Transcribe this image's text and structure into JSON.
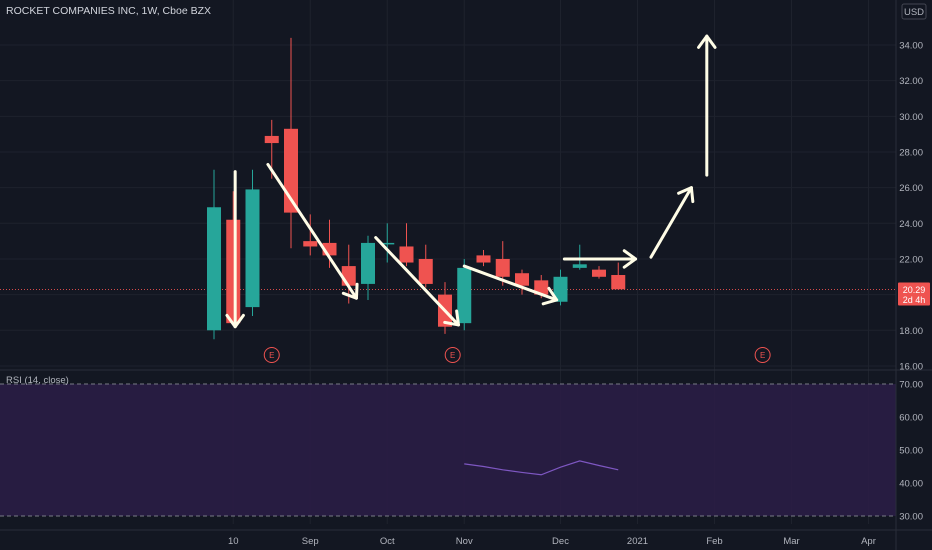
{
  "header": {
    "symbol_title": "ROCKET COMPANIES INC, 1W, Cboe BZX",
    "currency_label": "USD"
  },
  "colors": {
    "background": "#131722",
    "grid": "#1e222d",
    "up": "#26a69a",
    "down": "#ef5350",
    "annotation": "#fffde7",
    "rsi_band": "#2a1d45",
    "rsi_line": "#7e57c2"
  },
  "chart_data": {
    "type": "candlestick",
    "interval": "1W",
    "price_axis": {
      "range": [
        15.0,
        36.0
      ],
      "ticks": [
        "16.00",
        "18.00",
        "20.00",
        "22.00",
        "24.00",
        "26.00",
        "28.00",
        "30.00",
        "32.00",
        "34.00"
      ]
    },
    "last_price": {
      "value": 20.29,
      "label": "20.29",
      "countdown": "2d 4h"
    },
    "x_axis": {
      "labels": [
        {
          "text": "10",
          "week": 1
        },
        {
          "text": "Sep",
          "week": 5
        },
        {
          "text": "Oct",
          "week": 9
        },
        {
          "text": "Nov",
          "week": 13
        },
        {
          "text": "Dec",
          "week": 18
        },
        {
          "text": "2021",
          "week": 22
        },
        {
          "text": "Feb",
          "week": 26
        },
        {
          "text": "Mar",
          "week": 30
        },
        {
          "text": "Apr",
          "week": 34
        }
      ]
    },
    "candles": [
      {
        "week": 0,
        "open": 18.0,
        "high": 27.0,
        "low": 17.5,
        "close": 24.9
      },
      {
        "week": 1,
        "open": 24.2,
        "high": 25.8,
        "low": 18.3,
        "close": 18.4
      },
      {
        "week": 2,
        "open": 19.3,
        "high": 27.0,
        "low": 18.8,
        "close": 25.9
      },
      {
        "week": 3,
        "open": 28.9,
        "high": 29.8,
        "low": 26.5,
        "close": 28.5
      },
      {
        "week": 4,
        "open": 29.3,
        "high": 34.4,
        "low": 22.6,
        "close": 24.6
      },
      {
        "week": 5,
        "open": 23.0,
        "high": 24.5,
        "low": 22.2,
        "close": 22.7
      },
      {
        "week": 6,
        "open": 22.9,
        "high": 24.2,
        "low": 21.5,
        "close": 22.2
      },
      {
        "week": 7,
        "open": 21.6,
        "high": 22.8,
        "low": 19.5,
        "close": 20.5
      },
      {
        "week": 8,
        "open": 20.6,
        "high": 23.3,
        "low": 19.7,
        "close": 22.9
      },
      {
        "week": 9,
        "open": 22.9,
        "high": 24.0,
        "low": 21.8,
        "close": 22.9
      },
      {
        "week": 10,
        "open": 22.7,
        "high": 24.0,
        "low": 21.6,
        "close": 21.8
      },
      {
        "week": 11,
        "open": 22.0,
        "high": 22.8,
        "low": 20.4,
        "close": 20.6
      },
      {
        "week": 12,
        "open": 20.0,
        "high": 20.7,
        "low": 17.8,
        "close": 18.2
      },
      {
        "week": 13,
        "open": 18.4,
        "high": 22.0,
        "low": 18.0,
        "close": 21.5
      },
      {
        "week": 14,
        "open": 22.2,
        "high": 22.5,
        "low": 21.6,
        "close": 21.8
      },
      {
        "week": 15,
        "open": 22.0,
        "high": 23.0,
        "low": 20.5,
        "close": 21.0
      },
      {
        "week": 16,
        "open": 21.2,
        "high": 21.4,
        "low": 20.0,
        "close": 20.5
      },
      {
        "week": 17,
        "open": 20.8,
        "high": 21.1,
        "low": 19.8,
        "close": 20.0
      },
      {
        "week": 18,
        "open": 19.6,
        "high": 21.4,
        "low": 19.4,
        "close": 21.0
      },
      {
        "week": 19,
        "open": 21.5,
        "high": 22.8,
        "low": 21.4,
        "close": 21.7
      },
      {
        "week": 20,
        "open": 21.4,
        "high": 21.6,
        "low": 20.9,
        "close": 21.0
      },
      {
        "week": 21,
        "open": 21.1,
        "high": 21.8,
        "low": 20.3,
        "close": 20.3
      }
    ],
    "earnings_markers": [
      {
        "week": 3.0,
        "label": "E"
      },
      {
        "week": 12.4,
        "label": "E"
      },
      {
        "week": 28.5,
        "label": "E"
      }
    ],
    "annotations": [
      {
        "kind": "arrow",
        "from": {
          "week": 1.1,
          "price": 26.9
        },
        "to": {
          "week": 1.1,
          "price": 18.2
        }
      },
      {
        "kind": "arrow",
        "from": {
          "week": 2.8,
          "price": 27.3
        },
        "to": {
          "week": 7.4,
          "price": 19.8
        }
      },
      {
        "kind": "arrow",
        "from": {
          "week": 8.4,
          "price": 23.2
        },
        "to": {
          "week": 12.7,
          "price": 18.3
        }
      },
      {
        "kind": "arrow",
        "from": {
          "week": 13.0,
          "price": 21.6
        },
        "to": {
          "week": 17.8,
          "price": 19.7
        }
      },
      {
        "kind": "arrow",
        "from": {
          "week": 18.2,
          "price": 22.0
        },
        "to": {
          "week": 21.9,
          "price": 22.0
        }
      },
      {
        "kind": "arrow",
        "from": {
          "week": 22.7,
          "price": 22.1
        },
        "to": {
          "week": 24.8,
          "price": 26.0
        }
      },
      {
        "kind": "arrow",
        "from": {
          "week": 25.6,
          "price": 26.7
        },
        "to": {
          "week": 25.6,
          "price": 34.5
        }
      }
    ],
    "rsi": {
      "title": "RSI (14, close)",
      "range": [
        26.0,
        74.0
      ],
      "ticks": [
        "30.00",
        "40.00",
        "50.00",
        "60.00",
        "70.00"
      ],
      "upper_band": 70,
      "lower_band": 30,
      "values": [
        {
          "week": 13,
          "value": 45.8
        },
        {
          "week": 14,
          "value": 45.0
        },
        {
          "week": 15,
          "value": 44.0
        },
        {
          "week": 16,
          "value": 43.2
        },
        {
          "week": 17,
          "value": 42.5
        },
        {
          "week": 18,
          "value": 44.8
        },
        {
          "week": 19,
          "value": 46.7
        },
        {
          "week": 20,
          "value": 45.3
        },
        {
          "week": 21,
          "value": 44.0
        }
      ]
    }
  }
}
